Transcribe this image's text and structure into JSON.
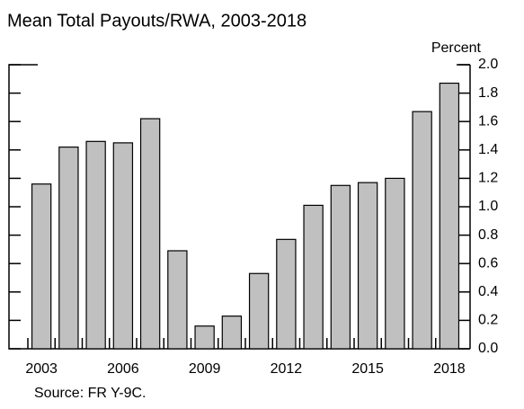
{
  "chart_data": {
    "type": "bar",
    "title": "Mean Total Payouts/RWA, 2003-2018",
    "y_unit": "Percent",
    "source": "Source: FR Y-9C.",
    "categories": [
      "2003",
      null,
      null,
      "2006",
      null,
      null,
      "2009",
      null,
      null,
      "2012",
      null,
      null,
      "2015",
      null,
      null,
      "2018"
    ],
    "values": [
      1.16,
      1.42,
      1.46,
      1.45,
      1.62,
      0.69,
      0.16,
      0.23,
      0.53,
      0.77,
      1.01,
      1.15,
      1.17,
      1.2,
      1.67,
      1.87
    ],
    "color": "#c0c0c0",
    "ylim": [
      0,
      2.0
    ],
    "yticks": [
      {
        "value": 0,
        "label": "0.0"
      },
      0.2,
      0.4,
      0.6,
      0.8,
      {
        "value": 1.0,
        "label": "1.0"
      },
      1.2,
      1.4,
      1.6,
      1.8,
      {
        "value": 2.0,
        "label": "2.0"
      }
    ]
  }
}
